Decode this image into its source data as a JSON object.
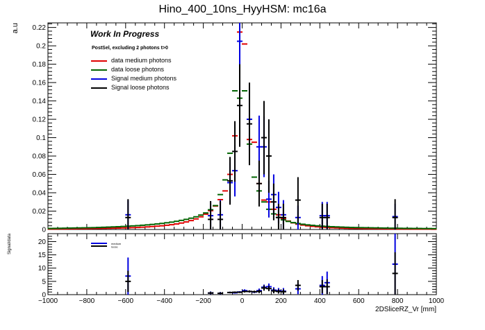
{
  "chart_data": [
    {
      "type": "scatter",
      "title": "Hino_400_10ns_HyyHSM: mc16a",
      "ylabel": "a.u",
      "xlabel": "",
      "xlim": [
        -1000,
        1000
      ],
      "ylim": [
        0,
        0.225
      ],
      "x_ticks": [
        -1000,
        -800,
        -600,
        -400,
        -200,
        0,
        200,
        400,
        600,
        800,
        1000
      ],
      "y_ticks": [
        0,
        0.02,
        0.04,
        0.06,
        0.08,
        0.1,
        0.12,
        0.14,
        0.16,
        0.18,
        0.2,
        0.22
      ],
      "y_tick_labels": [
        "0",
        "0.02",
        "0.04",
        "0.06",
        "0.08",
        "0.1",
        "0.12",
        "0.14",
        "0.16",
        "0.18",
        "0.2",
        "0.22"
      ],
      "annotation_title": "Work In Progress",
      "annotation_subtitle": "PostSel, excluding 2 photons t>0",
      "legend": [
        {
          "label": "data medium photons",
          "color": "#e00000"
        },
        {
          "label": "data loose photons",
          "color": "#006400"
        },
        {
          "label": "Signal medium photons",
          "color": "#0000e0"
        },
        {
          "label": "Signal loose photons",
          "color": "#000000"
        }
      ],
      "series": [
        {
          "name": "data medium photons",
          "color": "#e00000",
          "x": [
            -987.5,
            -962.5,
            -937.5,
            -912.5,
            -887.5,
            -862.5,
            -837.5,
            -812.5,
            -787.5,
            -762.5,
            -737.5,
            -712.5,
            -687.5,
            -662.5,
            -637.5,
            -612.5,
            -587.5,
            -562.5,
            -537.5,
            -512.5,
            -487.5,
            -462.5,
            -437.5,
            -412.5,
            -387.5,
            -362.5,
            -337.5,
            -312.5,
            -287.5,
            -262.5,
            -237.5,
            -212.5,
            -187.5,
            -162.5,
            -137.5,
            -112.5,
            -87.5,
            -62.5,
            -37.5,
            -12.5,
            12.5,
            37.5,
            62.5,
            87.5,
            112.5,
            137.5,
            162.5,
            187.5,
            212.5,
            237.5,
            262.5,
            287.5,
            312.5,
            337.5,
            362.5,
            387.5,
            412.5,
            437.5,
            462.5,
            487.5,
            512.5,
            537.5,
            562.5,
            587.5,
            612.5,
            637.5,
            662.5,
            687.5,
            712.5,
            737.5,
            762.5,
            787.5,
            812.5,
            837.5,
            862.5,
            887.5,
            912.5,
            937.5,
            962.5,
            987.5
          ],
          "y": [
            0.0005,
            0.0005,
            0.0006,
            0.0006,
            0.0007,
            0.0007,
            0.0008,
            0.0008,
            0.0009,
            0.001,
            0.0011,
            0.0012,
            0.0013,
            0.0014,
            0.0015,
            0.0017,
            0.0018,
            0.002,
            0.0022,
            0.0025,
            0.0028,
            0.0032,
            0.0036,
            0.004,
            0.0046,
            0.0052,
            0.006,
            0.007,
            0.0082,
            0.0097,
            0.0115,
            0.0138,
            0.0167,
            0.0205,
            0.0255,
            0.0325,
            0.042,
            0.06,
            0.102,
            0.215,
            0.202,
            0.098,
            0.095,
            0.05,
            0.032,
            0.03,
            0.022,
            0.016,
            0.012,
            0.0092,
            0.0072,
            0.0058,
            0.0048,
            0.004,
            0.0034,
            0.0029,
            0.0025,
            0.0022,
            0.0019,
            0.0017,
            0.0015,
            0.0013,
            0.0012,
            0.0011,
            0.001,
            0.0009,
            0.0008,
            0.0008,
            0.0007,
            0.0007,
            0.0006,
            0.0006,
            0.0005,
            0.0005,
            0.0005,
            0.0004,
            0.0004,
            0.0004,
            0.0004,
            0.0003
          ]
        },
        {
          "name": "data loose photons",
          "color": "#006400",
          "x": [
            -987.5,
            -962.5,
            -937.5,
            -912.5,
            -887.5,
            -862.5,
            -837.5,
            -812.5,
            -787.5,
            -762.5,
            -737.5,
            -712.5,
            -687.5,
            -662.5,
            -637.5,
            -612.5,
            -587.5,
            -562.5,
            -537.5,
            -512.5,
            -487.5,
            -462.5,
            -437.5,
            -412.5,
            -387.5,
            -362.5,
            -337.5,
            -312.5,
            -287.5,
            -262.5,
            -237.5,
            -212.5,
            -187.5,
            -162.5,
            -137.5,
            -112.5,
            -87.5,
            -62.5,
            -37.5,
            -12.5,
            12.5,
            37.5,
            62.5,
            87.5,
            112.5,
            137.5,
            162.5,
            187.5,
            212.5,
            237.5,
            262.5,
            287.5,
            312.5,
            337.5,
            362.5,
            387.5,
            412.5,
            437.5,
            462.5,
            487.5,
            512.5,
            537.5,
            562.5,
            587.5,
            612.5,
            637.5,
            662.5,
            687.5,
            712.5,
            737.5,
            762.5,
            787.5,
            812.5,
            837.5,
            862.5,
            887.5,
            912.5,
            937.5,
            962.5,
            987.5
          ],
          "y": [
            0.0011,
            0.0012,
            0.0013,
            0.0014,
            0.0015,
            0.0016,
            0.0017,
            0.0018,
            0.0019,
            0.002,
            0.0022,
            0.0024,
            0.0026,
            0.0028,
            0.003,
            0.0033,
            0.0036,
            0.0039,
            0.0042,
            0.0046,
            0.005,
            0.0055,
            0.006,
            0.0066,
            0.0073,
            0.008,
            0.0089,
            0.0099,
            0.011,
            0.0123,
            0.0138,
            0.0157,
            0.018,
            0.0215,
            0.026,
            0.038,
            0.054,
            0.083,
            0.151,
            0.143,
            0.151,
            0.093,
            0.057,
            0.042,
            0.03,
            0.022,
            0.017,
            0.0132,
            0.0105,
            0.0088,
            0.0075,
            0.0065,
            0.0057,
            0.005,
            0.0045,
            0.004,
            0.0036,
            0.0033,
            0.003,
            0.0028,
            0.0026,
            0.0024,
            0.0022,
            0.0021,
            0.002,
            0.0019,
            0.0018,
            0.0017,
            0.0016,
            0.0015,
            0.0014,
            0.0014,
            0.0013,
            0.0012,
            0.0012,
            0.0011,
            0.0011,
            0.001,
            0.001,
            0.0009
          ]
        },
        {
          "name": "Signal medium photons",
          "color": "#0000e0",
          "x": [
            -587.5,
            -162.5,
            -112.5,
            -62.5,
            -37.5,
            -12.5,
            37.5,
            87.5,
            112.5,
            137.5,
            162.5,
            187.5,
            212.5,
            287.5,
            412.5,
            437.5,
            787.5
          ],
          "y": [
            0.016,
            0.015,
            0.016,
            0.051,
            0.064,
            0.205,
            0.12,
            0.09,
            0.09,
            0.033,
            0.038,
            0.024,
            0.016,
            0.013,
            0.015,
            0.015,
            0.014
          ],
          "err": [
            0.016,
            0.015,
            0.016,
            0.022,
            0.028,
            0.04,
            0.035,
            0.034,
            0.033,
            0.02,
            0.022,
            0.017,
            0.016,
            0.013,
            0.015,
            0.015,
            0.014
          ]
        },
        {
          "name": "Signal loose photons",
          "color": "#000000",
          "x": [
            -587.5,
            -162.5,
            -112.5,
            -62.5,
            -37.5,
            -12.5,
            37.5,
            87.5,
            112.5,
            137.5,
            162.5,
            187.5,
            212.5,
            287.5,
            412.5,
            437.5,
            787.5
          ],
          "y": [
            0.013,
            0.011,
            0.011,
            0.053,
            0.085,
            0.135,
            0.115,
            0.05,
            0.1,
            0.08,
            0.03,
            0.013,
            0.013,
            0.032,
            0.013,
            0.013,
            0.013
          ],
          "err": [
            0.02,
            0.02,
            0.02,
            0.026,
            0.033,
            0.045,
            0.045,
            0.025,
            0.04,
            0.04,
            0.02,
            0.015,
            0.015,
            0.025,
            0.015,
            0.015,
            0.02
          ]
        }
      ]
    },
    {
      "type": "scatter",
      "title": "",
      "ylabel": "Signal/data",
      "xlabel": "2DSliceRZ_Vr [mm]",
      "xlim": [
        -1000,
        1000
      ],
      "ylim": [
        0,
        23
      ],
      "x_ticks": [
        -1000,
        -800,
        -600,
        -400,
        -200,
        0,
        200,
        400,
        600,
        800,
        1000
      ],
      "x_tick_labels": [
        "−1000",
        "−800",
        "−600",
        "−400",
        "−200",
        "0",
        "200",
        "400",
        "600",
        "800",
        "1000"
      ],
      "y_ticks": [
        0,
        5,
        10,
        15,
        20
      ],
      "y_tick_labels": [
        "0",
        "5",
        "10",
        "15",
        "20"
      ],
      "legend": [
        {
          "label": "medium",
          "color": "#0000e0"
        },
        {
          "label": "loose",
          "color": "#000000"
        }
      ],
      "series": [
        {
          "name": "medium",
          "color": "#0000e0",
          "x": [
            -587.5,
            -162.5,
            -112.5,
            -62.5,
            -37.5,
            -12.5,
            12.5,
            37.5,
            62.5,
            87.5,
            112.5,
            137.5,
            162.5,
            187.5,
            212.5,
            287.5,
            412.5,
            437.5,
            787.5
          ],
          "y": [
            7,
            0.6,
            0.5,
            0.8,
            0.7,
            1.0,
            1.5,
            1.2,
            1.0,
            1.5,
            2.8,
            3.0,
            1.7,
            1.5,
            1.3,
            2.2,
            3.5,
            4.5,
            11.5
          ],
          "err": [
            7,
            0.6,
            0.5,
            0.3,
            0.3,
            0.3,
            0.5,
            0.4,
            0.4,
            0.8,
            1.0,
            1.2,
            1.1,
            1.0,
            1.2,
            2.0,
            3.5,
            4.2,
            11.5
          ]
        },
        {
          "name": "loose",
          "color": "#000000",
          "x": [
            -587.5,
            -162.5,
            -112.5,
            -62.5,
            -37.5,
            -12.5,
            12.5,
            37.5,
            62.5,
            87.5,
            112.5,
            137.5,
            162.5,
            187.5,
            212.5,
            287.5,
            412.5,
            437.5,
            787.5
          ],
          "y": [
            5,
            0.6,
            0.5,
            0.8,
            0.9,
            0.9,
            1.2,
            1.2,
            1.1,
            1.2,
            2.5,
            2.3,
            1.4,
            1.2,
            1.1,
            3.5,
            3.0,
            3.0,
            8
          ],
          "err": [
            4,
            0.5,
            0.4,
            0.3,
            0.3,
            0.3,
            0.4,
            0.4,
            0.4,
            0.6,
            1.0,
            1.0,
            0.9,
            0.8,
            0.9,
            2.0,
            2.5,
            2.8,
            8
          ]
        }
      ]
    }
  ]
}
